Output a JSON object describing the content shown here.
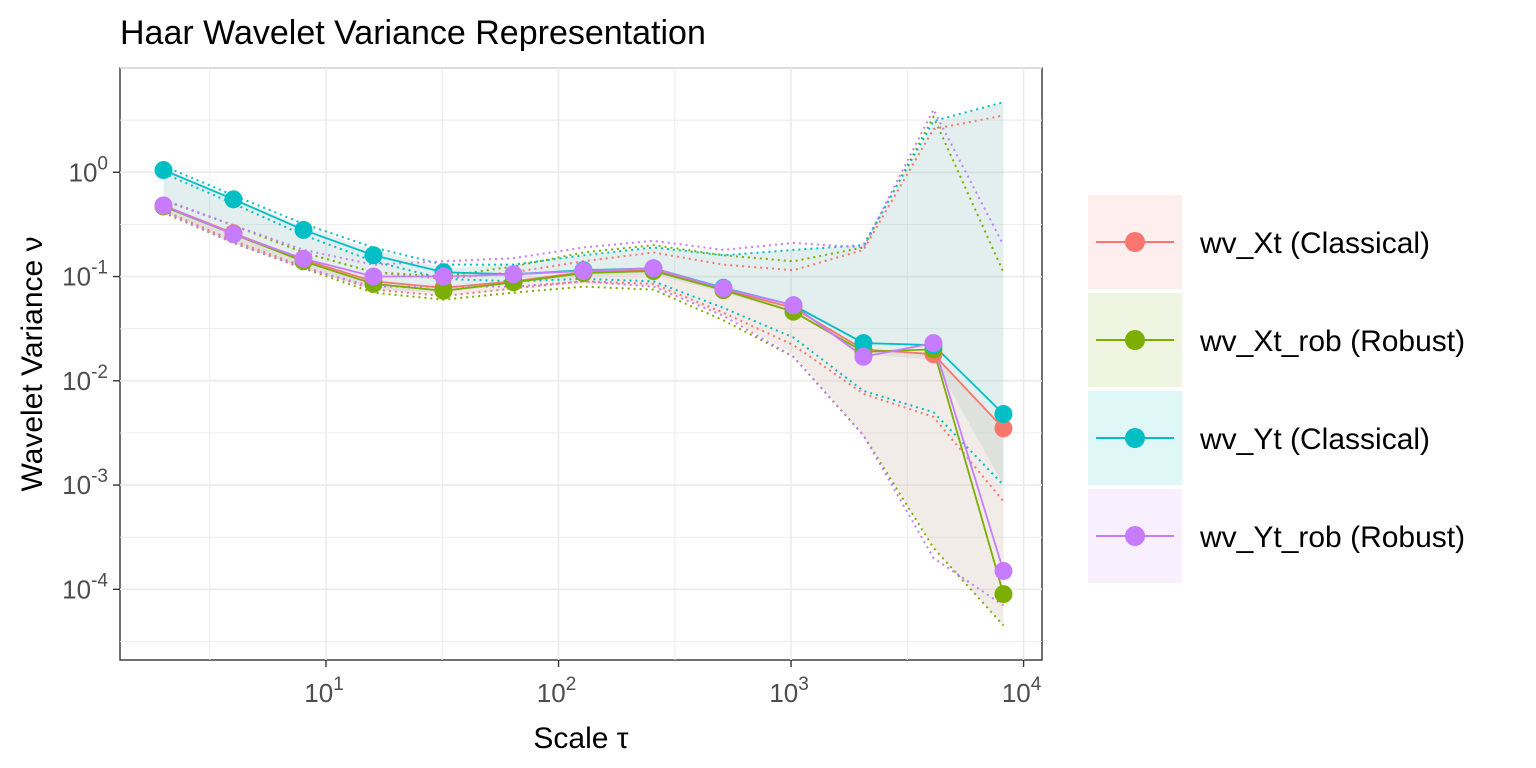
{
  "chart_data": {
    "type": "line",
    "title": "Haar Wavelet Variance Representation",
    "xlabel": "Scale τ",
    "ylabel": "Wavelet Variance ν",
    "x_scale": "log",
    "y_scale": "log",
    "xlim": [
      1.3,
      12000
    ],
    "ylim": [
      2.1e-05,
      10
    ],
    "grid": true,
    "legend_position": "right",
    "x_ticks": [
      {
        "value": 10,
        "base": "10",
        "exp": "1"
      },
      {
        "value": 100,
        "base": "10",
        "exp": "2"
      },
      {
        "value": 1000,
        "base": "10",
        "exp": "3"
      },
      {
        "value": 10000,
        "base": "10",
        "exp": "4"
      }
    ],
    "y_ticks": [
      {
        "value": 1,
        "base": "10",
        "exp": "0"
      },
      {
        "value": 0.1,
        "base": "10",
        "exp": "-1"
      },
      {
        "value": 0.01,
        "base": "10",
        "exp": "-2"
      },
      {
        "value": 0.001,
        "base": "10",
        "exp": "-3"
      },
      {
        "value": 0.0001,
        "base": "10",
        "exp": "-4"
      }
    ],
    "x": [
      2,
      4,
      8,
      16,
      32,
      64,
      128,
      256,
      512,
      1024,
      2048,
      4096,
      8192
    ],
    "series": [
      {
        "name": "wv_Xt (Classical)",
        "color": "#F8766D",
        "values": [
          0.48,
          0.26,
          0.145,
          0.09,
          0.078,
          0.09,
          0.11,
          0.115,
          0.075,
          0.05,
          0.02,
          0.018,
          0.0035
        ],
        "ci_low": [
          0.43,
          0.22,
          0.125,
          0.075,
          0.065,
          0.077,
          0.09,
          0.085,
          0.045,
          0.022,
          0.0075,
          0.0045,
          0.0007
        ],
        "ci_high": [
          0.54,
          0.31,
          0.17,
          0.11,
          0.095,
          0.11,
          0.14,
          0.17,
          0.13,
          0.115,
          0.18,
          2.6,
          3.5
        ]
      },
      {
        "name": "wv_Xt_rob (Robust)",
        "color": "#7CAE00",
        "values": [
          0.47,
          0.255,
          0.14,
          0.085,
          0.073,
          0.088,
          0.108,
          0.113,
          0.074,
          0.046,
          0.019,
          0.02,
          9e-05
        ],
        "ci_low": [
          0.41,
          0.21,
          0.12,
          0.07,
          0.06,
          0.07,
          0.08,
          0.075,
          0.038,
          0.017,
          0.003,
          0.00025,
          4.5e-05
        ],
        "ci_high": [
          0.54,
          0.31,
          0.17,
          0.11,
          0.1,
          0.125,
          0.17,
          0.2,
          0.16,
          0.14,
          0.19,
          3.4,
          0.11
        ]
      },
      {
        "name": "wv_Yt (Classical)",
        "color": "#00BFC4",
        "values": [
          1.05,
          0.55,
          0.28,
          0.16,
          0.11,
          0.105,
          0.115,
          0.12,
          0.078,
          0.053,
          0.023,
          0.022,
          0.0048
        ],
        "ci_low": [
          0.98,
          0.5,
          0.25,
          0.14,
          0.095,
          0.09,
          0.095,
          0.09,
          0.05,
          0.026,
          0.008,
          0.005,
          0.001
        ],
        "ci_high": [
          1.15,
          0.6,
          0.32,
          0.19,
          0.13,
          0.13,
          0.16,
          0.19,
          0.16,
          0.18,
          0.2,
          3.1,
          4.7
        ]
      },
      {
        "name": "wv_Yt_rob (Robust)",
        "color": "#C77CFF",
        "values": [
          0.48,
          0.255,
          0.148,
          0.1,
          0.1,
          0.105,
          0.113,
          0.12,
          0.077,
          0.053,
          0.017,
          0.023,
          0.00015
        ],
        "ci_low": [
          0.42,
          0.21,
          0.12,
          0.08,
          0.08,
          0.08,
          0.09,
          0.08,
          0.042,
          0.017,
          0.003,
          0.0002,
          7e-05
        ],
        "ci_high": [
          0.55,
          0.31,
          0.18,
          0.13,
          0.14,
          0.15,
          0.19,
          0.22,
          0.18,
          0.21,
          0.19,
          4.0,
          0.2
        ]
      }
    ],
    "bands": [
      {
        "color": "#8FBFBB",
        "low": [
          0.42,
          0.21,
          0.12,
          0.075,
          0.07,
          0.085,
          0.1,
          0.105,
          0.07,
          0.045,
          0.018,
          0.016,
          0.001
        ],
        "high": [
          1.1,
          0.57,
          0.3,
          0.18,
          0.12,
          0.13,
          0.16,
          0.19,
          0.16,
          0.18,
          0.2,
          3.0,
          4.7
        ]
      },
      {
        "color": "#D8C8BE",
        "low": [
          0.42,
          0.21,
          0.12,
          0.075,
          0.065,
          0.075,
          0.085,
          0.08,
          0.042,
          0.018,
          0.003,
          0.00025,
          4.5e-05
        ],
        "high": [
          0.48,
          0.26,
          0.145,
          0.09,
          0.078,
          0.09,
          0.11,
          0.115,
          0.075,
          0.05,
          0.02,
          0.018,
          0.0035
        ]
      }
    ]
  }
}
